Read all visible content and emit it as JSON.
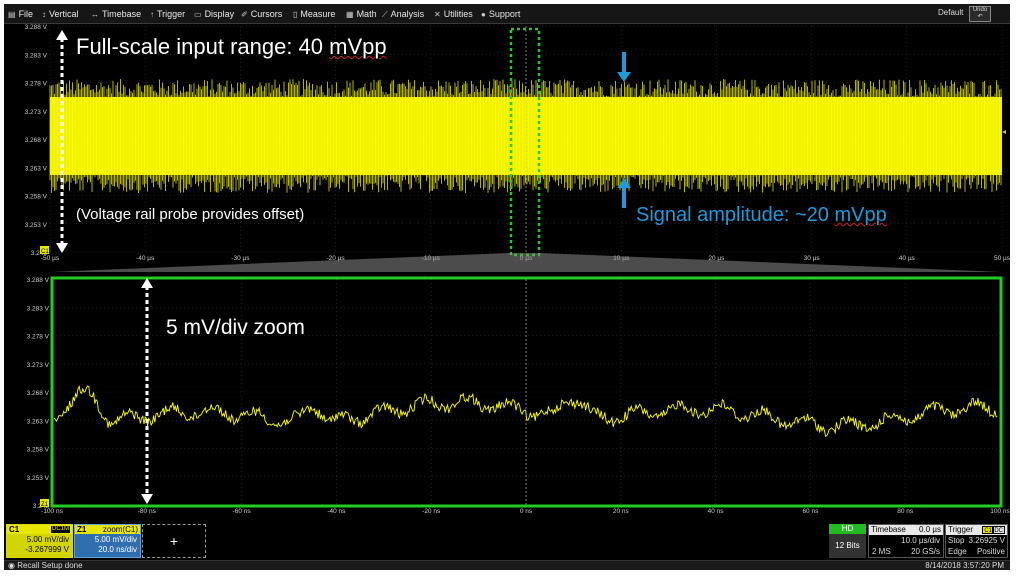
{
  "menu": {
    "items": [
      {
        "label": "File",
        "icon": "file-icon"
      },
      {
        "label": "Vertical",
        "icon": "vertical-icon"
      },
      {
        "label": "Timebase",
        "icon": "timebase-icon"
      },
      {
        "label": "Trigger",
        "icon": "trigger-icon"
      },
      {
        "label": "Display",
        "icon": "display-icon"
      },
      {
        "label": "Cursors",
        "icon": "cursors-icon"
      },
      {
        "label": "Measure",
        "icon": "measure-icon"
      },
      {
        "label": "Math",
        "icon": "math-icon"
      },
      {
        "label": "Analysis",
        "icon": "analysis-icon"
      },
      {
        "label": "Utilities",
        "icon": "utilities-icon"
      },
      {
        "label": "Support",
        "icon": "support-icon"
      }
    ],
    "default_label": "Default",
    "undo_label": "Undo"
  },
  "colors": {
    "trace": "#ffff00",
    "zoom_frame": "#22cc22",
    "annotation_blue": "#1e9ad8",
    "grid": "#3a3a3a"
  },
  "top_grid": {
    "y_labels": [
      "3.288 V",
      "3.283 V",
      "3.278 V",
      "3.273 V",
      "3.268 V",
      "3.263 V",
      "3.258 V",
      "3.253 V",
      "3.248"
    ],
    "x_labels": [
      "-50 µs",
      "-40 µs",
      "-30 µs",
      "-20 µs",
      "-10 µs",
      "0 µs",
      "10 µs",
      "20 µs",
      "30 µs",
      "40 µs",
      "50 µs"
    ],
    "channel_tag": "C1"
  },
  "zoom_grid": {
    "y_labels": [
      "3.288 V",
      "3.283 V",
      "3.278 V",
      "3.273 V",
      "3.268 V",
      "3.263 V",
      "3.258 V",
      "3.253 V",
      "3.248"
    ],
    "x_labels": [
      "-100 ns",
      "-80 ns",
      "-60 ns",
      "-40 ns",
      "-20 ns",
      "0 ns",
      "20 ns",
      "40 ns",
      "60 ns",
      "80 ns",
      "100 ns"
    ],
    "channel_tag": "Z1"
  },
  "annotations": {
    "fullscale_prefix": "Full-scale input range: 40 ",
    "fullscale_unit": "mVpp",
    "offset": "(Voltage rail probe provides offset)",
    "signal_prefix": "Signal amplitude: ~20 ",
    "signal_unit": "mVpp",
    "zoom": "5 mV/div zoom"
  },
  "descriptors": {
    "c1": {
      "name": "C1",
      "coupling": "DC1M",
      "vdiv": "5.00 mV/div",
      "offset": "-3.267999 V"
    },
    "z1": {
      "name": "Z1",
      "source": "zoom(C1)",
      "vdiv": "5.00 mV/div",
      "tdiv": "20.0 ns/div"
    },
    "add_label": "+",
    "hd": {
      "label": "HD",
      "bits": "12 Bits"
    },
    "timebase": {
      "title": "Timebase",
      "delay": "0.0 µs",
      "tdiv": "10.0 µs/div",
      "samples": "2 MS",
      "rate": "20 GS/s"
    },
    "trigger": {
      "title": "Trigger",
      "tag1": "C1",
      "tag2": "DC",
      "mode": "Stop",
      "level": "3.26925 V",
      "type": "Edge",
      "slope": "Positive"
    }
  },
  "status": {
    "message": "Recall Setup done",
    "datetime": "8/14/2018 3:57:20 PM"
  }
}
